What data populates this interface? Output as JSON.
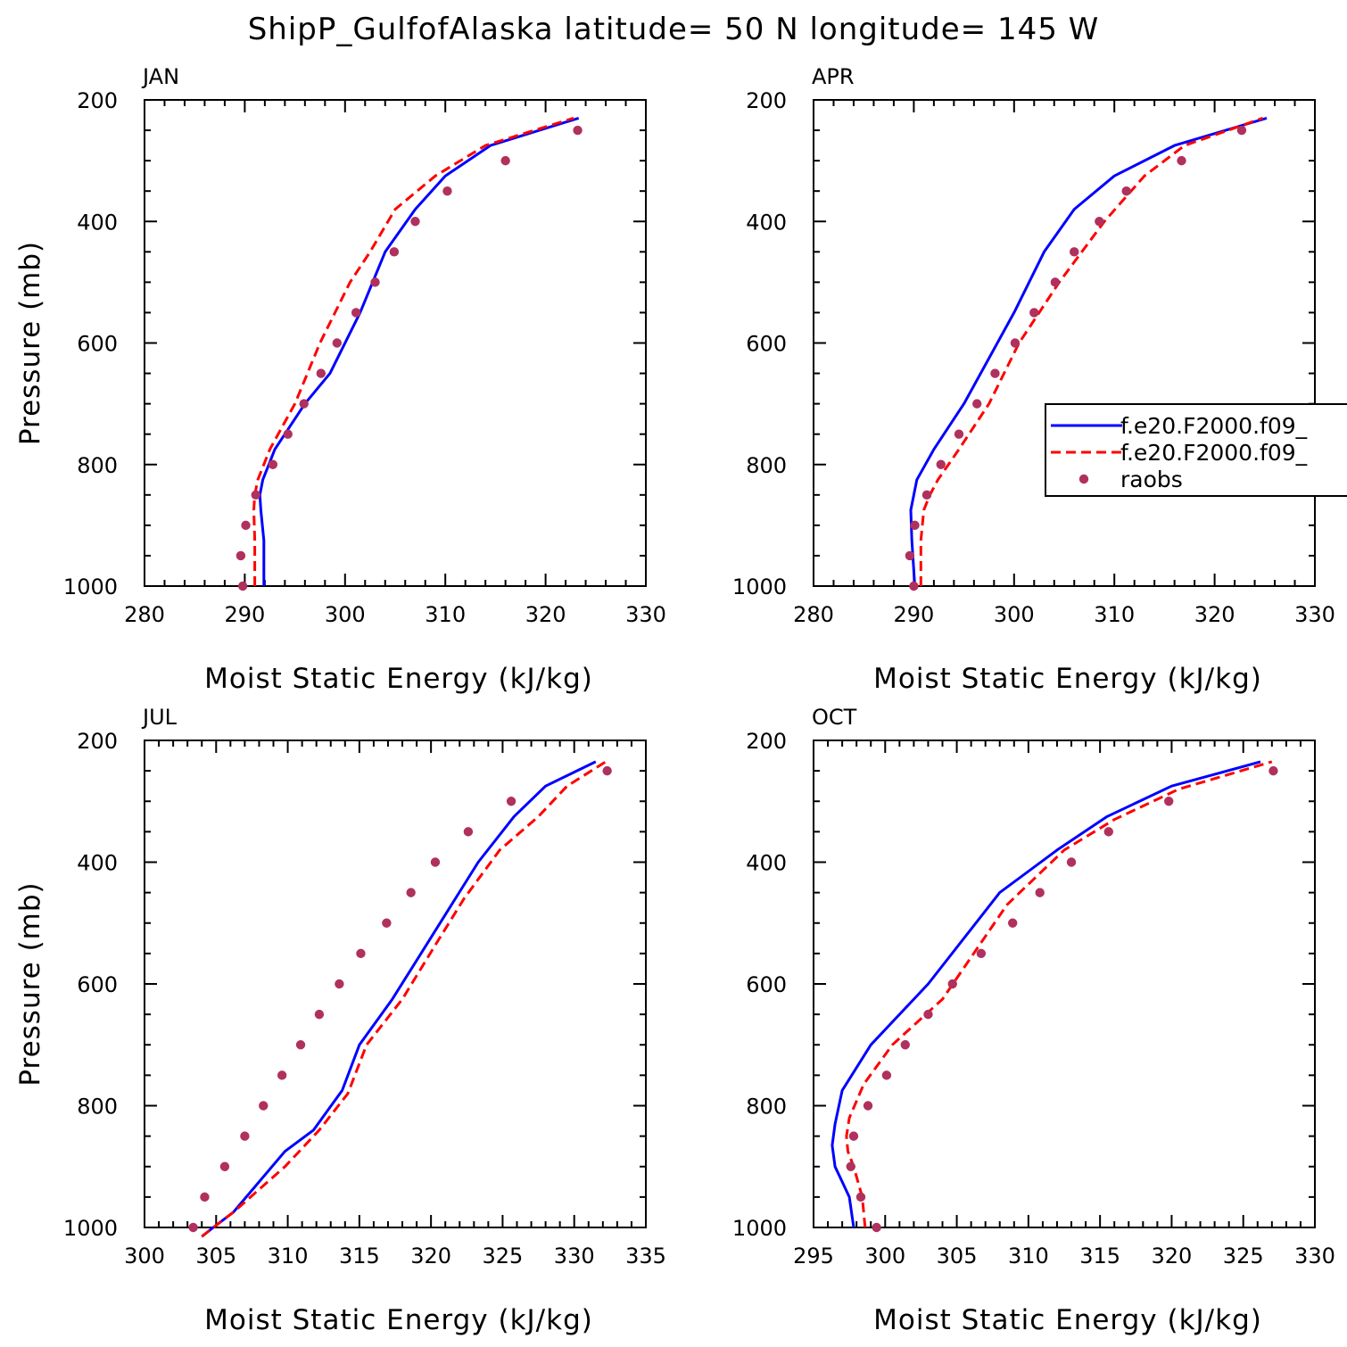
{
  "title": "ShipP_GulfofAlaska  latitude= 50 N longitude= 145 W",
  "colors": {
    "model1": "#0000ff",
    "model2": "#ff0000",
    "raobs": "#b0305e",
    "axis": "#000000"
  },
  "legend": {
    "placement": "right side of APR panel",
    "entries": [
      {
        "label": "f.e20.F2000.f09_",
        "style": "solid",
        "color": "#0000ff"
      },
      {
        "label": "f.e20.F2000.f09_",
        "style": "dashed",
        "color": "#ff0000"
      },
      {
        "label": "raobs",
        "style": "marker",
        "color": "#b0305e"
      }
    ]
  },
  "chart_data": [
    {
      "type": "line",
      "panel": "JAN",
      "xlabel": "Moist Static Energy (kJ/kg)",
      "ylabel": "Pressure (mb)",
      "xlim": [
        280,
        330
      ],
      "ylim": [
        200,
        1000
      ],
      "y_inverted": true,
      "xticks": [
        280,
        290,
        300,
        310,
        320,
        330
      ],
      "yticks": [
        200,
        400,
        600,
        800,
        1000
      ],
      "series": [
        {
          "style": "solid",
          "color": "#0000ff",
          "x": [
            291.9,
            291.9,
            291.6,
            291.5,
            291.8,
            293.0,
            296.0,
            298.5,
            301.5,
            304.0,
            307.0,
            310.0,
            314.5,
            323.3
          ],
          "y": [
            1000,
            925,
            875,
            850,
            825,
            775,
            700,
            650,
            550,
            450,
            380,
            325,
            275,
            230
          ]
        },
        {
          "style": "dashed",
          "color": "#ff0000",
          "x": [
            291.0,
            291.0,
            290.9,
            291.0,
            291.3,
            292.5,
            295.0,
            297.5,
            300.5,
            302.5,
            305.0,
            309.0,
            314.0,
            322.8
          ],
          "y": [
            1000,
            925,
            875,
            850,
            825,
            775,
            700,
            600,
            500,
            450,
            380,
            325,
            275,
            230
          ]
        },
        {
          "name": "raobs",
          "style": "marker",
          "color": "#b0305e",
          "x": [
            289.8,
            289.6,
            290.1,
            291.1,
            292.8,
            294.3,
            295.9,
            297.6,
            299.2,
            301.1,
            303.0,
            304.9,
            307.0,
            310.2,
            316.0,
            323.2
          ],
          "y": [
            1000,
            950,
            900,
            850,
            800,
            750,
            700,
            650,
            600,
            550,
            500,
            450,
            400,
            350,
            300,
            250
          ]
        }
      ]
    },
    {
      "type": "line",
      "panel": "APR",
      "xlabel": "Moist Static Energy (kJ/kg)",
      "ylabel": "",
      "xlim": [
        280,
        330
      ],
      "ylim": [
        200,
        1000
      ],
      "y_inverted": true,
      "xticks": [
        280,
        290,
        300,
        310,
        320,
        330
      ],
      "yticks": [
        200,
        400,
        600,
        800,
        1000
      ],
      "series": [
        {
          "style": "solid",
          "color": "#0000ff",
          "x": [
            290.1,
            289.8,
            289.7,
            290.0,
            290.3,
            292.0,
            295.0,
            300.0,
            303.0,
            306.0,
            310.0,
            316.0,
            325.2
          ],
          "y": [
            1000,
            925,
            875,
            850,
            825,
            775,
            700,
            550,
            450,
            380,
            325,
            275,
            230
          ]
        },
        {
          "style": "dashed",
          "color": "#ff0000",
          "x": [
            290.7,
            290.7,
            291.0,
            291.6,
            292.4,
            294.5,
            297.5,
            300.5,
            304.5,
            309.0,
            313.0,
            317.0,
            324.8
          ],
          "y": [
            1000,
            925,
            875,
            850,
            825,
            775,
            700,
            600,
            500,
            400,
            325,
            275,
            230
          ]
        },
        {
          "name": "raobs",
          "style": "marker",
          "color": "#b0305e",
          "x": [
            290.0,
            289.6,
            290.1,
            291.3,
            292.7,
            294.5,
            296.3,
            298.1,
            300.1,
            302.0,
            304.1,
            306.0,
            308.5,
            311.2,
            316.7,
            322.7
          ],
          "y": [
            1000,
            950,
            900,
            850,
            800,
            750,
            700,
            650,
            600,
            550,
            500,
            450,
            400,
            350,
            300,
            250
          ]
        }
      ]
    },
    {
      "type": "line",
      "panel": "JUL",
      "xlabel": "Moist Static Energy (kJ/kg)",
      "ylabel": "Pressure (mb)",
      "xlim": [
        300,
        335
      ],
      "ylim": [
        200,
        1000
      ],
      "y_inverted": true,
      "xticks": [
        300,
        305,
        310,
        315,
        320,
        325,
        330,
        335
      ],
      "yticks": [
        200,
        400,
        600,
        800,
        1000
      ],
      "series": [
        {
          "style": "solid",
          "color": "#0000ff",
          "x": [
            304.0,
            304.8,
            306.2,
            309.8,
            311.8,
            313.8,
            315.0,
            317.3,
            319.3,
            321.3,
            323.3,
            325.8,
            328.0,
            331.5
          ],
          "y": [
            1015,
            1000,
            975,
            875,
            840,
            775,
            700,
            625,
            550,
            475,
            400,
            325,
            275,
            235
          ]
        },
        {
          "style": "dashed",
          "color": "#ff0000",
          "x": [
            304.0,
            304.8,
            306.2,
            309.8,
            312.2,
            314.2,
            315.5,
            318.0,
            320.2,
            322.3,
            324.8,
            327.5,
            329.5,
            332.2
          ],
          "y": [
            1015,
            1000,
            975,
            900,
            840,
            780,
            700,
            625,
            540,
            460,
            380,
            325,
            275,
            235
          ]
        },
        {
          "name": "raobs",
          "style": "marker",
          "color": "#b0305e",
          "x": [
            303.4,
            304.2,
            305.6,
            307.0,
            308.3,
            309.6,
            310.9,
            312.2,
            313.6,
            315.1,
            316.9,
            318.6,
            320.3,
            322.6,
            325.6,
            332.3
          ],
          "y": [
            1000,
            950,
            900,
            850,
            800,
            750,
            700,
            650,
            600,
            550,
            500,
            450,
            400,
            350,
            300,
            250
          ]
        }
      ]
    },
    {
      "type": "line",
      "panel": "OCT",
      "xlabel": "Moist Static Energy (kJ/kg)",
      "ylabel": "",
      "xlim": [
        295,
        330
      ],
      "ylim": [
        200,
        1000
      ],
      "y_inverted": true,
      "xticks": [
        295,
        300,
        305,
        310,
        315,
        320,
        325,
        330
      ],
      "yticks": [
        200,
        400,
        600,
        800,
        1000
      ],
      "series": [
        {
          "style": "solid",
          "color": "#0000ff",
          "x": [
            297.8,
            297.5,
            297.0,
            296.5,
            296.3,
            296.5,
            297.0,
            299.0,
            303.0,
            308.0,
            312.0,
            315.5,
            320.0,
            326.2
          ],
          "y": [
            1000,
            950,
            925,
            900,
            865,
            830,
            775,
            700,
            600,
            450,
            380,
            325,
            275,
            235
          ]
        },
        {
          "style": "dashed",
          "color": "#ff0000",
          "x": [
            298.6,
            298.4,
            297.8,
            297.4,
            297.3,
            297.5,
            298.5,
            300.5,
            304.0,
            308.5,
            312.5,
            316.0,
            320.5,
            327.0
          ],
          "y": [
            1000,
            950,
            900,
            875,
            850,
            820,
            765,
            700,
            625,
            470,
            380,
            330,
            280,
            235
          ]
        },
        {
          "name": "raobs",
          "style": "marker",
          "color": "#b0305e",
          "x": [
            299.4,
            298.3,
            297.6,
            297.8,
            298.8,
            300.1,
            301.4,
            303.0,
            304.7,
            306.7,
            308.9,
            310.8,
            313.0,
            315.6,
            319.8,
            327.1
          ],
          "y": [
            1000,
            950,
            900,
            850,
            800,
            750,
            700,
            650,
            600,
            550,
            500,
            450,
            400,
            350,
            300,
            250
          ]
        }
      ]
    }
  ]
}
